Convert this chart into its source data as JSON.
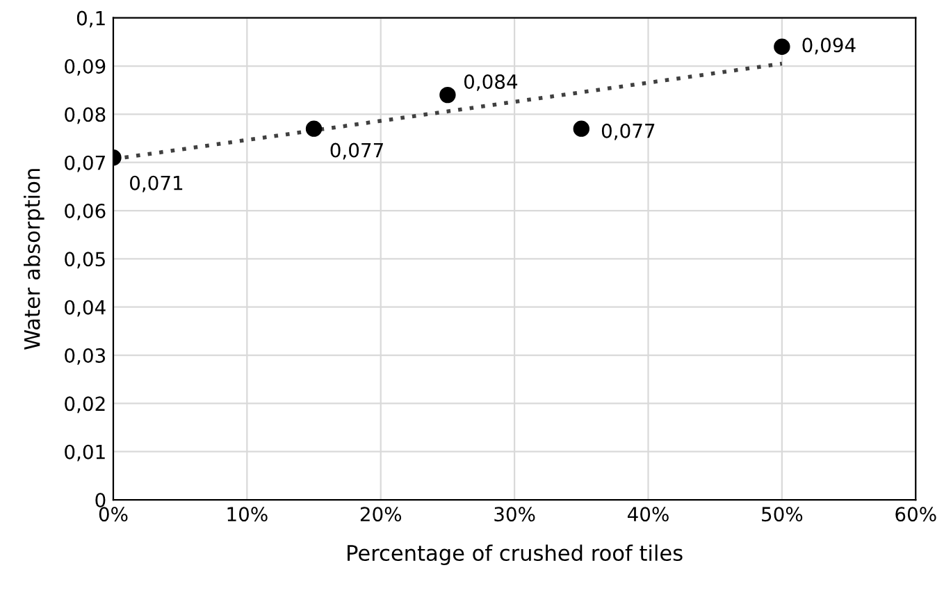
{
  "chart_data": {
    "type": "scatter",
    "xlabel": "Percentage of crushed roof tiles",
    "ylabel": "Water absorption",
    "series": [
      {
        "color": "#000000",
        "x": [
          0,
          15,
          25,
          35,
          50
        ],
        "values": [
          0.071,
          0.077,
          0.084,
          0.077,
          0.094
        ],
        "value_labels": [
          "0,071",
          "0,077",
          "0,084",
          "0,077",
          "0,094"
        ],
        "marker": "circle"
      },
      {
        "type": "line",
        "color": "#404040",
        "x": [
          0,
          50
        ],
        "values": [
          0.0707,
          0.0905
        ],
        "line_style": "dotted",
        "marker": "none"
      }
    ],
    "xlim": [
      0,
      60
    ],
    "xticks": [
      {
        "value": 0,
        "label": "0%"
      },
      {
        "value": 10,
        "label": "10%"
      },
      {
        "value": 20,
        "label": "20%"
      },
      {
        "value": 30,
        "label": "30%"
      },
      {
        "value": 40,
        "label": "40%"
      },
      {
        "value": 50,
        "label": "50%"
      },
      {
        "value": 60,
        "label": "60%"
      }
    ],
    "ylim": [
      0,
      0.1
    ],
    "yticks": [
      {
        "value": 0,
        "label": "0"
      },
      {
        "value": 0.01,
        "label": "0,01"
      },
      {
        "value": 0.02,
        "label": "0,02"
      },
      {
        "value": 0.03,
        "label": "0,03"
      },
      {
        "value": 0.04,
        "label": "0,04"
      },
      {
        "value": 0.05,
        "label": "0,05"
      },
      {
        "value": 0.06,
        "label": "0,06"
      },
      {
        "value": 0.07,
        "label": "0,07"
      },
      {
        "value": 0.08,
        "label": "0,08"
      },
      {
        "value": 0.09,
        "label": "0,09"
      },
      {
        "value": 0.1,
        "label": "0,1"
      }
    ],
    "grid": true,
    "legend": false
  }
}
